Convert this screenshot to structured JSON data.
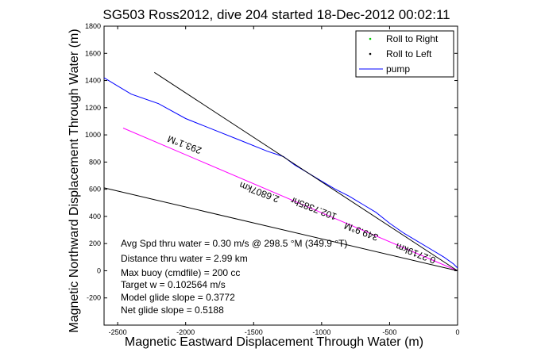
{
  "chart_data": {
    "type": "line",
    "title": "SG503 Ross2012, dive 204 started 18-Dec-2012 00:02:11",
    "xlabel": "Magnetic Eastward Displacement Through Water (m)",
    "ylabel": "Magnetic Northward Displacement Through Water (m)",
    "xlim": [
      -2600,
      0
    ],
    "ylim": [
      -400,
      1800
    ],
    "xticks": [
      -2500,
      -2000,
      -1500,
      -1000,
      -500,
      0
    ],
    "yticks": [
      -200,
      0,
      200,
      400,
      600,
      800,
      1000,
      1200,
      1400,
      1600,
      1800
    ],
    "grid": false,
    "legend": {
      "placement": "top-right",
      "entries": [
        {
          "label": "Roll to Right",
          "color": "#00cc00",
          "marker": "dot"
        },
        {
          "label": "Roll to Left",
          "color": "#000000",
          "marker": "dot"
        },
        {
          "label": "pump",
          "color": "#0000ff",
          "marker": "line"
        }
      ]
    },
    "series": [
      {
        "name": "pump",
        "color": "#0000ff",
        "points": [
          [
            -2600,
            1420
          ],
          [
            -2500,
            1360
          ],
          [
            -2400,
            1300
          ],
          [
            -2200,
            1230
          ],
          [
            -2000,
            1120
          ],
          [
            -1800,
            1040
          ],
          [
            -1600,
            960
          ],
          [
            -1400,
            880
          ],
          [
            -1280,
            840
          ],
          [
            -1200,
            780
          ],
          [
            -1100,
            720
          ],
          [
            -1000,
            660
          ],
          [
            -900,
            600
          ],
          [
            -800,
            550
          ],
          [
            -700,
            490
          ],
          [
            -600,
            430
          ],
          [
            -500,
            350
          ],
          [
            -400,
            280
          ],
          [
            -300,
            220
          ],
          [
            -200,
            160
          ],
          [
            -100,
            100
          ],
          [
            -30,
            50
          ],
          [
            0,
            20
          ]
        ]
      },
      {
        "color": "#ff00ff",
        "points": [
          [
            -2460,
            1050
          ],
          [
            0,
            0
          ]
        ]
      },
      {
        "color": "#000000",
        "points": [
          [
            -2230,
            1460
          ],
          [
            0,
            0
          ]
        ]
      },
      {
        "color": "#000000",
        "points": [
          [
            -2600,
            610
          ],
          [
            0,
            0
          ]
        ]
      }
    ],
    "annotations": [
      {
        "text": "293.1°M",
        "x": -2000,
        "y": 950,
        "rotate_deg": 201
      },
      {
        "text": "2.6807km",
        "x": -1450,
        "y": 600,
        "rotate_deg": 201
      },
      {
        "text": "102.7385hr",
        "x": -1050,
        "y": 480,
        "rotate_deg": 201
      },
      {
        "text": "349.9°M",
        "x": -700,
        "y": 310,
        "rotate_deg": 201
      },
      {
        "text": "0.2719km",
        "x": -300,
        "y": 150,
        "rotate_deg": 201
      }
    ],
    "stats": [
      "Avg Spd thru water = 0.30 m/s @ 298.5 °M (349.9 °T)",
      "Distance thru water = 2.99 km",
      "Max buoy (cmdfile) = 200 cc",
      "Target w = 0.102564 m/s",
      "Model glide slope = 0.3772",
      "Net glide slope = 0.5188"
    ]
  }
}
